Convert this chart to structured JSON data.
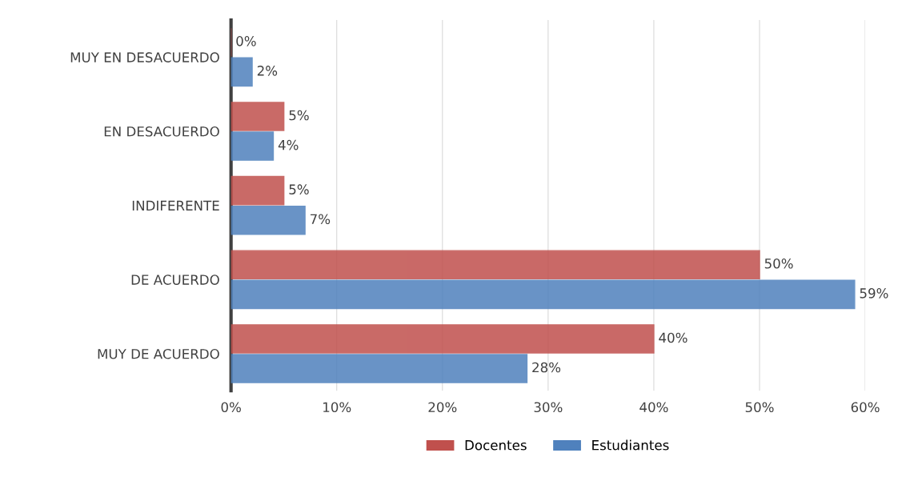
{
  "chart_data": {
    "type": "bar",
    "orientation": "horizontal",
    "categories": [
      "MUY EN DESACUERDO",
      "EN DESACUERDO",
      "INDIFERENTE",
      "DE ACUERDO",
      "MUY DE ACUERDO"
    ],
    "series": [
      {
        "name": "Docentes",
        "color": "#c0504d",
        "values": [
          0,
          5,
          5,
          50,
          40
        ],
        "value_labels": [
          "0%",
          "5%",
          "5%",
          "50%",
          "40%"
        ]
      },
      {
        "name": "Estudiantes",
        "color": "#4f81bd",
        "values": [
          2,
          4,
          7,
          59,
          28
        ],
        "value_labels": [
          "2%",
          "4%",
          "7%",
          "59%",
          "28%"
        ]
      }
    ],
    "xlim": [
      0,
      60
    ],
    "xticks": [
      {
        "value": 0,
        "label": "0%"
      },
      {
        "value": 10,
        "label": "10%"
      },
      {
        "value": 20,
        "label": "20%"
      },
      {
        "value": 30,
        "label": "30%"
      },
      {
        "value": 40,
        "label": "40%"
      },
      {
        "value": 50,
        "label": "50%"
      },
      {
        "value": 60,
        "label": "60%"
      }
    ],
    "grid": "x",
    "legend": "bottom"
  }
}
